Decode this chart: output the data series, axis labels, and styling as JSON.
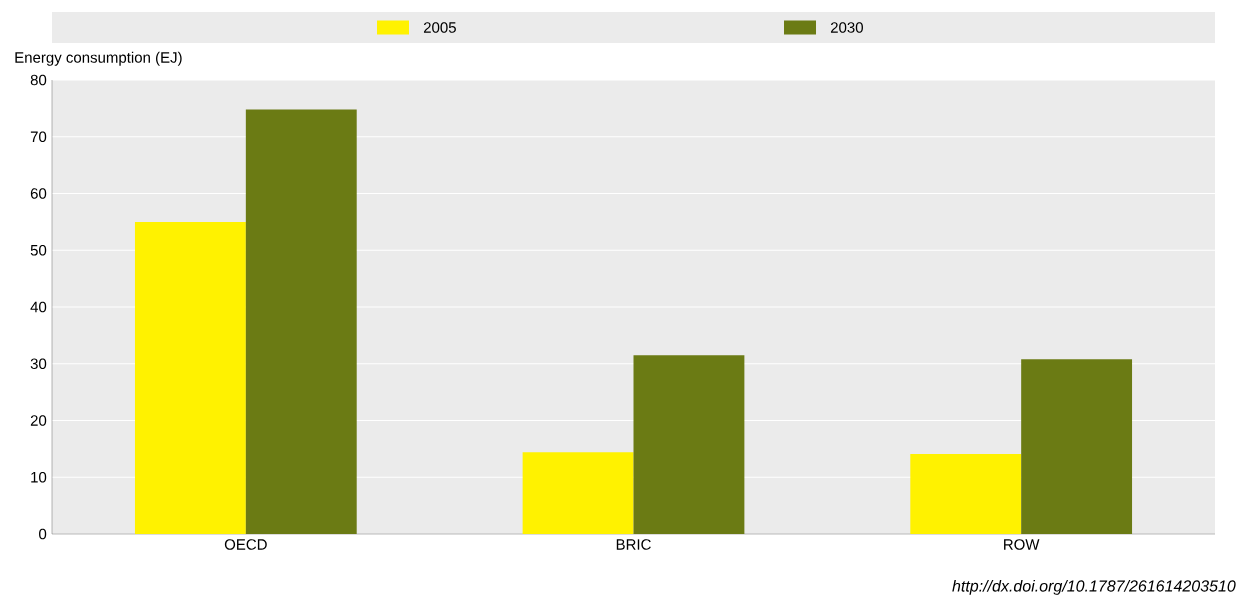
{
  "chart_data": {
    "type": "bar",
    "ylabel": "Energy consumption (EJ)",
    "categories": [
      "OECD",
      "BRIC",
      "ROW"
    ],
    "series": [
      {
        "name": "2005",
        "color": "#fff200",
        "values": [
          55.0,
          14.4,
          14.1
        ]
      },
      {
        "name": "2030",
        "color": "#6b7b14",
        "values": [
          74.8,
          31.5,
          30.8
        ]
      }
    ],
    "ylim": [
      0,
      80
    ],
    "yticks": [
      0,
      10,
      20,
      30,
      40,
      50,
      60,
      70,
      80
    ],
    "grid": "y",
    "legend": "top",
    "annotations": [
      "http://dx.doi.org/10.1787/261614203510"
    ]
  }
}
